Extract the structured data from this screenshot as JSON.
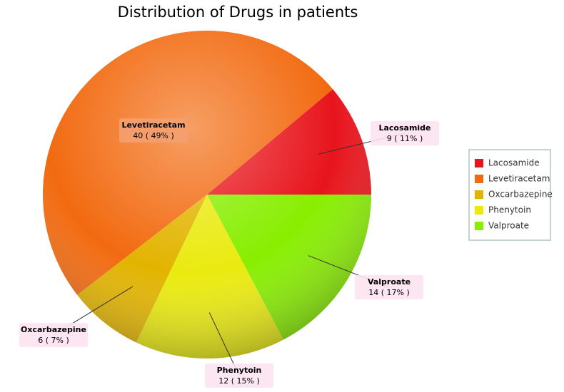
{
  "chart_data": {
    "type": "pie",
    "title": "Distribution of Drugs in patients",
    "categories": [
      "Lacosamide",
      "Levetiracetam",
      "Oxcarbazepine",
      "Phenytoin",
      "Valproate"
    ],
    "values": [
      9,
      40,
      6,
      12,
      14
    ],
    "value_labels": [
      "9 ( 11% )",
      "40 ( 49% )",
      "6 ( 7% )",
      "12 ( 15% )",
      "14 ( 17% )"
    ],
    "colors": [
      "#e8141c",
      "#f26a10",
      "#e2b400",
      "#eaea10",
      "#88ee00"
    ],
    "legend": "right"
  }
}
